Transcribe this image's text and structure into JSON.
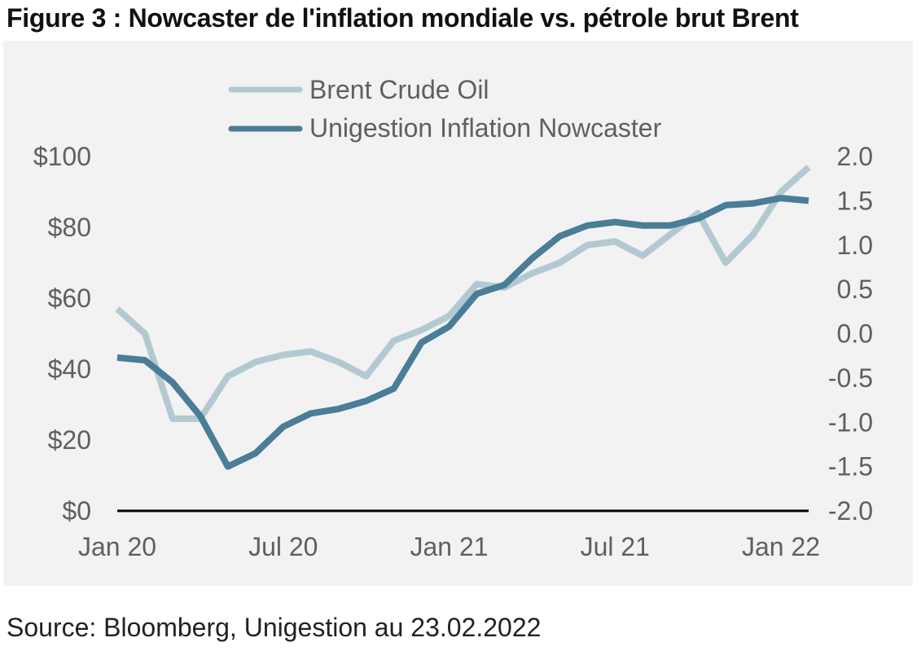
{
  "title": "Figure 3 : Nowcaster de l'inflation mondiale vs. pétrole brut Brent",
  "source": "Source: Bloomberg, Unigestion au 23.02.2022",
  "colors": {
    "brent": "#b3c9d2",
    "nowcaster": "#4a7d97",
    "panel": "#f2f2f2",
    "axis": "#000000"
  },
  "chart_data": {
    "type": "line",
    "x": [
      "2020-01",
      "2020-02",
      "2020-03",
      "2020-04",
      "2020-05",
      "2020-06",
      "2020-07",
      "2020-08",
      "2020-09",
      "2020-10",
      "2020-11",
      "2020-12",
      "2021-01",
      "2021-02",
      "2021-03",
      "2021-04",
      "2021-05",
      "2021-06",
      "2021-07",
      "2021-08",
      "2021-09",
      "2021-10",
      "2021-11",
      "2021-12",
      "2022-01",
      "2022-02"
    ],
    "x_tick_labels": [
      "Jan 20",
      "Jul 20",
      "Jan 21",
      "Jul 21",
      "Jan 22"
    ],
    "y_left": {
      "ticks": [
        "$100",
        "$80",
        "$60",
        "$40",
        "$20",
        "$0"
      ],
      "ylim": [
        0,
        100
      ]
    },
    "y_right": {
      "ticks": [
        "2.0",
        "1.5",
        "1.0",
        "0.5",
        "0.0",
        "-0.5",
        "-1.0",
        "-1.5",
        "-2.0"
      ],
      "ylim": [
        -2.0,
        2.0
      ]
    },
    "legend_position": "top",
    "grid": false,
    "series": [
      {
        "name": "Brent Crude Oil",
        "axis": "left",
        "values": [
          57,
          50,
          26,
          26,
          38,
          42,
          44,
          45,
          42,
          38,
          48,
          51,
          55,
          64,
          63,
          67,
          70,
          75,
          76,
          72,
          78,
          84,
          70,
          78,
          90,
          97
        ]
      },
      {
        "name": "Unigestion Inflation Nowcaster",
        "axis": "right",
        "values": [
          -0.27,
          -0.3,
          -0.55,
          -0.93,
          -1.5,
          -1.35,
          -1.05,
          -0.9,
          -0.85,
          -0.76,
          -0.62,
          -0.1,
          0.08,
          0.45,
          0.55,
          0.85,
          1.1,
          1.22,
          1.26,
          1.22,
          1.22,
          1.3,
          1.45,
          1.47,
          1.53,
          1.5
        ]
      }
    ]
  }
}
